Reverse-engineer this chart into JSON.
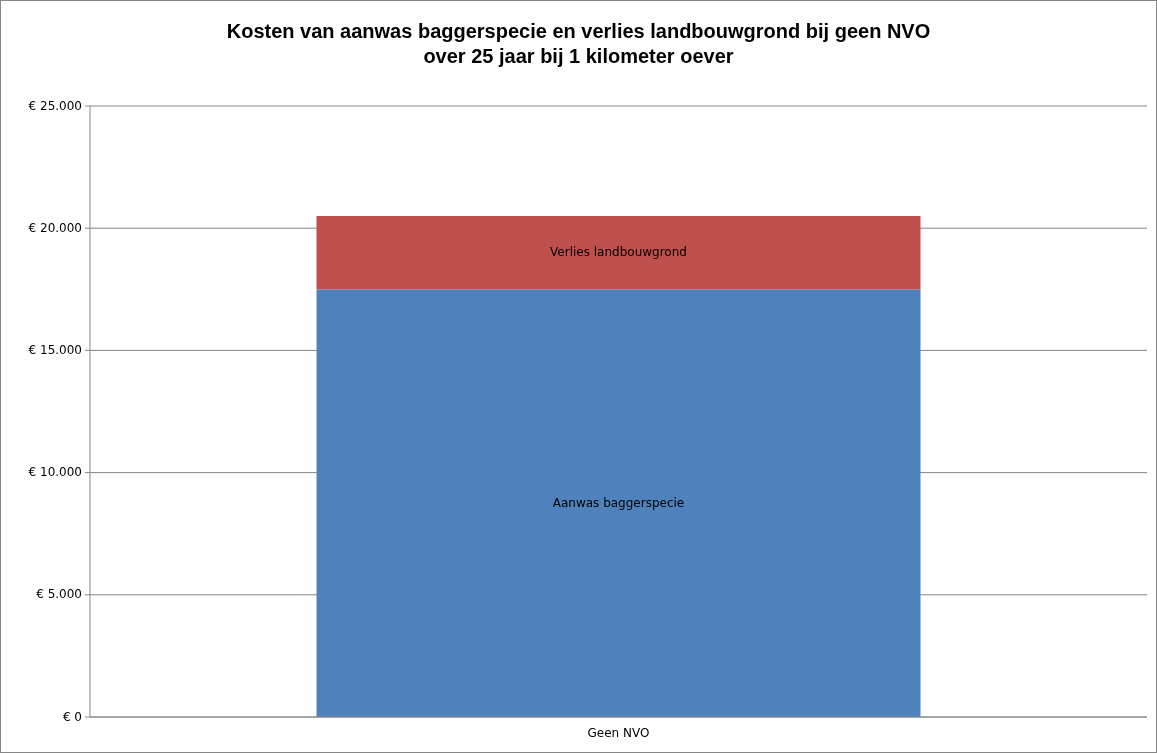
{
  "chart_data": {
    "type": "bar",
    "stacked": true,
    "title": "Kosten van aanwas baggerspecie en verlies landbouwgrond bij geen NVO\nover 25 jaar bij 1 kilometer oever",
    "categories": [
      "Geen NVO"
    ],
    "series": [
      {
        "name": "Aanwas baggerspecie",
        "color": "#4f81bd",
        "values": [
          17500
        ]
      },
      {
        "name": "Verlies landbouwgrond",
        "color": "#c0504d",
        "values": [
          3000
        ]
      }
    ],
    "ylim": [
      0,
      25000
    ],
    "yticks": [
      {
        "value": 0,
        "label": "€ 0"
      },
      {
        "value": 5000,
        "label": "€ 5.000"
      },
      {
        "value": 10000,
        "label": "€ 10.000"
      },
      {
        "value": 15000,
        "label": "€ 15.000"
      },
      {
        "value": 20000,
        "label": "€ 20.000"
      },
      {
        "value": 25000,
        "label": "€ 25.000"
      }
    ],
    "grid": "y"
  }
}
